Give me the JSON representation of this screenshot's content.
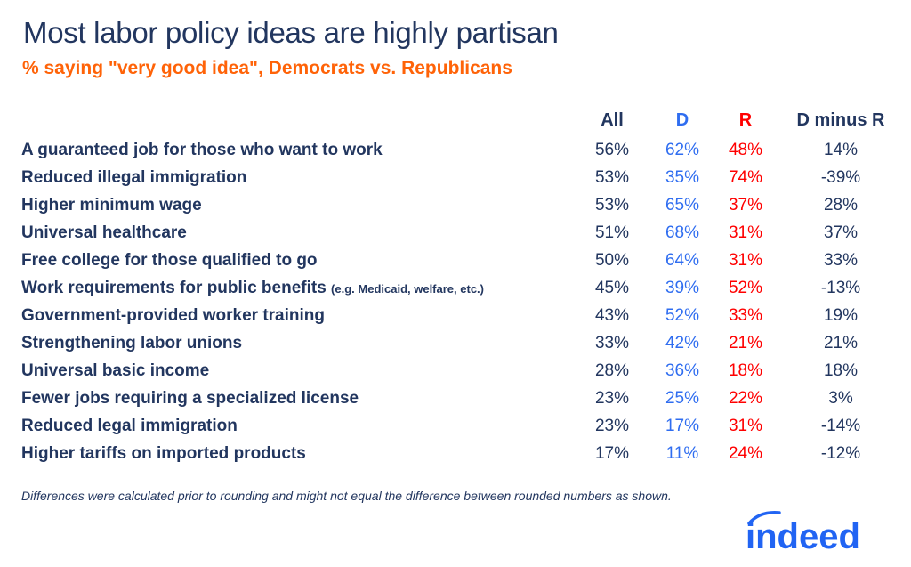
{
  "title": "Most labor policy ideas are highly partisan",
  "subtitle": "% saying \"very good idea\", Democrats vs. Republicans",
  "colors": {
    "title": "#22365f",
    "subtitle": "#ff6308",
    "D": "#2f6df0",
    "R": "#ff0000",
    "text": "#22365f",
    "logo": "#2164f3"
  },
  "chart_data": {
    "type": "table",
    "columns": [
      "All",
      "D",
      "R",
      "D minus R"
    ],
    "rows": [
      {
        "label": "A guaranteed job for those who want to work",
        "note": "",
        "values": [
          "56%",
          "62%",
          "48%",
          "14%"
        ]
      },
      {
        "label": "Reduced illegal immigration",
        "note": "",
        "values": [
          "53%",
          "35%",
          "74%",
          "-39%"
        ]
      },
      {
        "label": "Higher minimum wage",
        "note": "",
        "values": [
          "53%",
          "65%",
          "37%",
          "28%"
        ]
      },
      {
        "label": "Universal healthcare",
        "note": "",
        "values": [
          "51%",
          "68%",
          "31%",
          "37%"
        ]
      },
      {
        "label": "Free college for those qualified to go",
        "note": "",
        "values": [
          "50%",
          "64%",
          "31%",
          "33%"
        ]
      },
      {
        "label": "Work requirements for public benefits",
        "note": "(e.g. Medicaid, welfare, etc.)",
        "values": [
          "45%",
          "39%",
          "52%",
          "-13%"
        ]
      },
      {
        "label": "Government-provided worker training",
        "note": "",
        "values": [
          "43%",
          "52%",
          "33%",
          "19%"
        ]
      },
      {
        "label": "Strengthening labor unions",
        "note": "",
        "values": [
          "33%",
          "42%",
          "21%",
          "21%"
        ]
      },
      {
        "label": "Universal basic income",
        "note": "",
        "values": [
          "28%",
          "36%",
          "18%",
          "18%"
        ]
      },
      {
        "label": "Fewer jobs requiring a specialized license",
        "note": "",
        "values": [
          "23%",
          "25%",
          "22%",
          "3%"
        ]
      },
      {
        "label": "Reduced legal immigration",
        "note": "",
        "values": [
          "23%",
          "17%",
          "31%",
          "-14%"
        ]
      },
      {
        "label": "Higher tariffs on imported products",
        "note": "",
        "values": [
          "17%",
          "11%",
          "24%",
          "-12%"
        ]
      }
    ]
  },
  "footnote": "Differences were calculated prior to rounding and might not equal the difference between rounded numbers as shown.",
  "logo": {
    "text": "indeed"
  }
}
